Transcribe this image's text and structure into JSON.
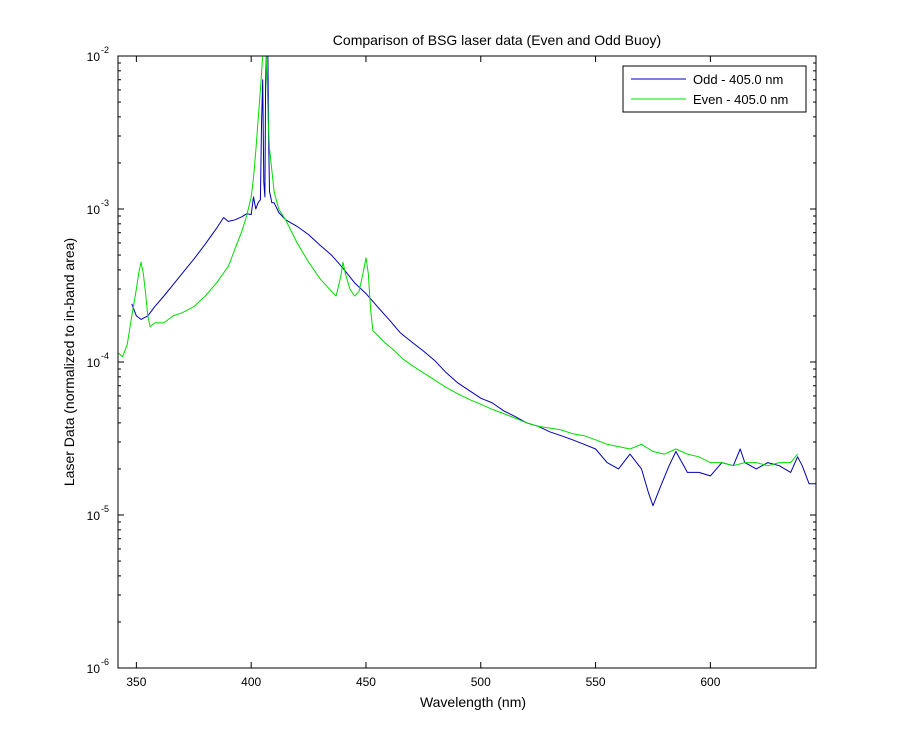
{
  "chart_data": {
    "type": "line",
    "title": "Comparison of BSG laser data (Even and Odd Buoy)",
    "xlabel": "Wavelength (nm)",
    "ylabel": "Laser Data (normalized to in-band area)",
    "xlim": [
      342,
      646
    ],
    "ylim": [
      1e-06,
      0.01
    ],
    "yscale": "log",
    "grid": false,
    "legend_position": "top-right",
    "x_ticks": [
      350,
      400,
      450,
      500,
      550,
      600
    ],
    "y_ticks": [
      {
        "value": 1e-06,
        "base": "10",
        "exp": "-6"
      },
      {
        "value": 1e-05,
        "base": "10",
        "exp": "-5"
      },
      {
        "value": 0.0001,
        "base": "10",
        "exp": "-4"
      },
      {
        "value": 0.001,
        "base": "10",
        "exp": "-3"
      },
      {
        "value": 0.01,
        "base": "10",
        "exp": "-2"
      }
    ],
    "series": [
      {
        "name": "Odd - 405.0 nm",
        "color": "#0000b4",
        "x": [
          348,
          350,
          352,
          355,
          358,
          362,
          366,
          370,
          375,
          380,
          385,
          388,
          390,
          393,
          396,
          398,
          400,
          401,
          402,
          403,
          404,
          404.5,
          405,
          405.5,
          406,
          406.3,
          406.6,
          407,
          407.3,
          407.6,
          408,
          408.5,
          409,
          410,
          412,
          415,
          420,
          425,
          430,
          435,
          440,
          445,
          450,
          455,
          460,
          465,
          470,
          475,
          480,
          485,
          490,
          495,
          500,
          505,
          510,
          515,
          520,
          525,
          530,
          535,
          540,
          545,
          550,
          555,
          560,
          565,
          570,
          573,
          575,
          578,
          582,
          585,
          590,
          595,
          600,
          605,
          610,
          613,
          615,
          620,
          625,
          630,
          635,
          638,
          640,
          643,
          646
        ],
        "y": [
          0.00024,
          0.0002,
          0.00019,
          0.0002,
          0.00023,
          0.00027,
          0.00032,
          0.00038,
          0.00047,
          0.00059,
          0.00075,
          0.00088,
          0.00083,
          0.00085,
          0.00089,
          0.00093,
          0.00092,
          0.0012,
          0.001,
          0.0011,
          0.00115,
          0.0035,
          0.007,
          0.0015,
          0.0012,
          0.0065,
          0.01,
          0.01,
          0.01,
          0.003,
          0.0013,
          0.0012,
          0.0011,
          0.0011,
          0.00095,
          0.00085,
          0.00077,
          0.00068,
          0.00058,
          0.0005,
          0.00041,
          0.00033,
          0.00028,
          0.00023,
          0.00019,
          0.000155,
          0.000135,
          0.000118,
          0.000102,
          8.5e-05,
          7.3e-05,
          6.5e-05,
          5.8e-05,
          5.4e-05,
          4.8e-05,
          4.4e-05,
          4e-05,
          3.8e-05,
          3.5e-05,
          3.3e-05,
          3.1e-05,
          2.9e-05,
          2.7e-05,
          2.2e-05,
          2e-05,
          2.5e-05,
          2e-05,
          1.4e-05,
          1.15e-05,
          1.5e-05,
          2.1e-05,
          2.6e-05,
          1.9e-05,
          1.9e-05,
          1.8e-05,
          2.2e-05,
          2.1e-05,
          2.7e-05,
          2.2e-05,
          2e-05,
          2.2e-05,
          2.1e-05,
          1.9e-05,
          2.4e-05,
          2.1e-05,
          1.6e-05,
          1.6e-05
        ]
      },
      {
        "name": "Even - 405.0 nm",
        "color": "#00dc00",
        "x": [
          342,
          344,
          346,
          348,
          350,
          351,
          352,
          353,
          354,
          355,
          356,
          358,
          362,
          366,
          370,
          375,
          380,
          385,
          390,
          393,
          396,
          398,
          400,
          401,
          402,
          403,
          404,
          405,
          405.5,
          406,
          406.5,
          407,
          407.5,
          408,
          409,
          410,
          412,
          415,
          420,
          425,
          430,
          435,
          437,
          439,
          440,
          441,
          443,
          445,
          447,
          449,
          450,
          451,
          452,
          453,
          455,
          458,
          462,
          466,
          470,
          475,
          480,
          485,
          490,
          495,
          500,
          505,
          510,
          515,
          520,
          525,
          530,
          535,
          540,
          545,
          550,
          555,
          560,
          565,
          570,
          575,
          580,
          585,
          590,
          595,
          600,
          605,
          610,
          615,
          620,
          625,
          630,
          635,
          638
        ],
        "y": [
          0.000115,
          0.000108,
          0.00013,
          0.0002,
          0.0003,
          0.00038,
          0.00045,
          0.00038,
          0.00028,
          0.0002,
          0.00017,
          0.00018,
          0.00018,
          0.0002,
          0.00021,
          0.00023,
          0.00027,
          0.00033,
          0.00042,
          0.00055,
          0.00072,
          0.0009,
          0.0012,
          0.0016,
          0.0024,
          0.0038,
          0.006,
          0.01,
          0.01,
          0.01,
          0.01,
          0.0065,
          0.0035,
          0.0025,
          0.0018,
          0.0013,
          0.001,
          0.00085,
          0.0006,
          0.00045,
          0.00035,
          0.00029,
          0.00027,
          0.00036,
          0.00045,
          0.00038,
          0.0003,
          0.00027,
          0.00029,
          0.0004,
          0.00048,
          0.00038,
          0.00022,
          0.00016,
          0.00015,
          0.000135,
          0.00012,
          0.000105,
          9.5e-05,
          8.5e-05,
          7.6e-05,
          6.8e-05,
          6.2e-05,
          5.7e-05,
          5.3e-05,
          4.9e-05,
          4.6e-05,
          4.3e-05,
          4e-05,
          3.8e-05,
          3.7e-05,
          3.6e-05,
          3.4e-05,
          3.3e-05,
          3.1e-05,
          2.9e-05,
          2.8e-05,
          2.7e-05,
          2.9e-05,
          2.6e-05,
          2.5e-05,
          2.7e-05,
          2.5e-05,
          2.4e-05,
          2.2e-05,
          2.2e-05,
          2.1e-05,
          2.2e-05,
          2.2e-05,
          2.1e-05,
          2.2e-05,
          2.2e-05,
          2.5e-05
        ]
      }
    ]
  }
}
